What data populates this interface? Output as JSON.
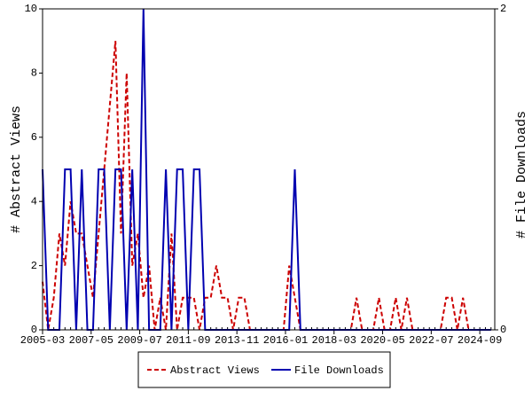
{
  "chart_data": {
    "type": "line",
    "ylabel": "# Abstract Views",
    "y2label": "# File Downloads",
    "x": [
      "2005-03",
      "2005-06",
      "2005-09",
      "2005-12",
      "2006-03",
      "2006-06",
      "2006-09",
      "2006-12",
      "2007-03",
      "2007-06",
      "2007-09",
      "2007-12",
      "2008-03",
      "2008-06",
      "2008-09",
      "2008-12",
      "2009-03",
      "2009-06",
      "2009-09",
      "2009-12",
      "2010-03",
      "2010-06",
      "2010-09",
      "2010-12",
      "2011-03",
      "2011-06",
      "2011-09",
      "2011-12",
      "2012-03",
      "2012-06",
      "2012-09",
      "2012-12",
      "2013-03",
      "2013-06",
      "2013-09",
      "2013-12",
      "2014-03",
      "2014-06",
      "2014-09",
      "2014-12",
      "2015-03",
      "2015-06",
      "2015-09",
      "2015-12",
      "2016-03",
      "2016-06",
      "2016-09",
      "2016-12",
      "2017-03",
      "2017-06",
      "2017-09",
      "2017-12",
      "2018-03",
      "2018-06",
      "2018-09",
      "2018-12",
      "2019-03",
      "2019-06",
      "2019-09",
      "2019-12",
      "2020-03",
      "2020-06",
      "2020-09",
      "2020-12",
      "2021-03",
      "2021-06",
      "2021-09",
      "2021-12",
      "2022-03",
      "2022-06",
      "2022-09",
      "2022-12",
      "2023-03",
      "2023-06",
      "2023-09",
      "2023-12",
      "2024-03",
      "2024-06",
      "2024-09",
      "2024-12",
      "2025-03"
    ],
    "series": [
      {
        "name": "Abstract Views",
        "color": "#cc0000",
        "dash": true,
        "values": [
          1.5,
          0,
          1,
          3,
          2,
          4,
          3,
          3,
          2,
          1,
          3,
          5,
          7,
          9,
          3,
          8,
          2,
          3,
          1,
          2,
          0,
          1,
          0,
          3,
          0,
          1,
          1,
          1,
          0,
          1,
          1,
          2,
          1,
          1,
          0,
          1,
          1,
          0,
          0,
          0,
          0,
          0,
          0,
          0,
          2,
          1,
          0,
          0,
          0,
          0,
          0,
          0,
          0,
          0,
          0,
          0,
          1,
          0,
          0,
          0,
          1,
          0,
          0,
          1,
          0,
          1,
          0,
          0,
          0,
          0,
          0,
          0,
          1,
          1,
          0,
          1,
          0,
          0,
          0,
          0,
          0
        ]
      },
      {
        "name": "File Downloads",
        "color": "#0000b0",
        "dash": false,
        "axis": "y2",
        "values": [
          1,
          0,
          0,
          0,
          1,
          1,
          0,
          1,
          0,
          0,
          1,
          1,
          0,
          1,
          1,
          0,
          1,
          0,
          2,
          0,
          0,
          0,
          1,
          0,
          1,
          1,
          0,
          1,
          1,
          0,
          0,
          0,
          0,
          0,
          0,
          0,
          0,
          0,
          0,
          0,
          0,
          0,
          0,
          0,
          0,
          1,
          0,
          0,
          0,
          0,
          0,
          0,
          0,
          0,
          0,
          0,
          0,
          0,
          0,
          0,
          0,
          0,
          0,
          0,
          0,
          0,
          0,
          0,
          0,
          0,
          0,
          0,
          0,
          0,
          0,
          0,
          0,
          0,
          0,
          0,
          0
        ]
      }
    ],
    "xlim": [
      "2005-03",
      "2025-05"
    ],
    "xticks": [
      "2005-03",
      "2007-05",
      "2009-07",
      "2011-09",
      "2013-11",
      "2016-01",
      "2018-03",
      "2020-05",
      "2022-07",
      "2024-09"
    ],
    "ylim": [
      0,
      10
    ],
    "yticks": [
      0,
      2,
      4,
      6,
      8,
      10
    ],
    "y2lim": [
      0,
      2
    ],
    "y2ticks": [
      0,
      2
    ],
    "legend": "bottom"
  }
}
